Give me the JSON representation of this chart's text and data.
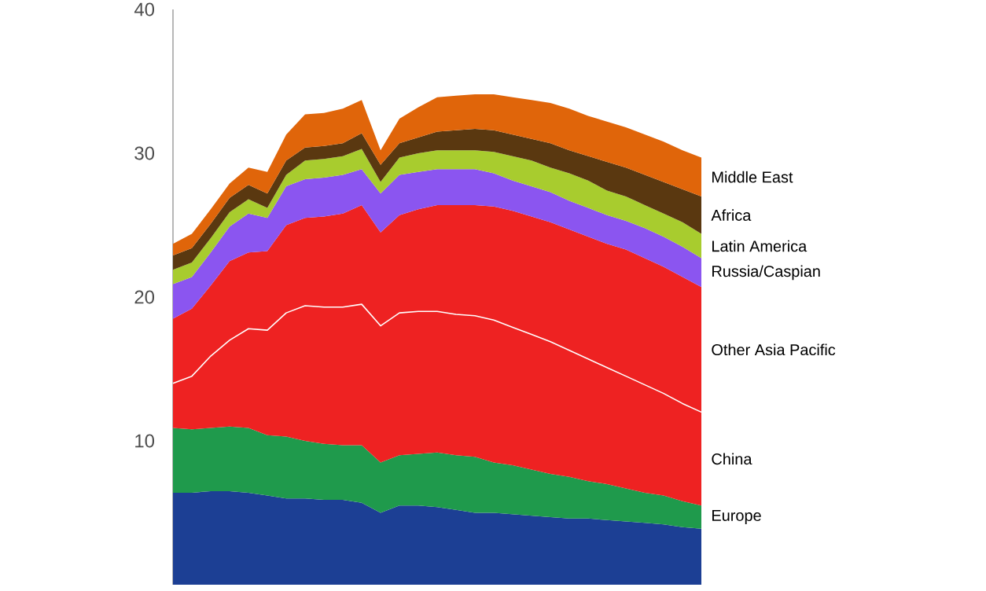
{
  "chart_data": {
    "type": "area",
    "stacked": true,
    "categories": [
      null,
      null,
      null,
      null,
      null,
      null,
      null,
      null,
      null,
      null,
      null,
      null,
      null,
      null,
      null,
      null,
      null,
      null,
      null,
      null,
      null,
      null,
      null,
      null,
      null,
      null,
      null,
      null,
      null
    ],
    "ylim": [
      0,
      40
    ],
    "yticks": [
      10,
      20,
      30,
      40
    ],
    "grid": false,
    "legend": false,
    "series": [
      {
        "color": "#1c3f94",
        "values": [
          6.4,
          6.4,
          6.5,
          6.5,
          6.4,
          6.2,
          6.0,
          6.0,
          5.9,
          5.9,
          5.7,
          5.0,
          5.5,
          5.5,
          5.4,
          5.2,
          5.0,
          5.0,
          4.9,
          4.8,
          4.7,
          4.6,
          4.6,
          4.5,
          4.4,
          4.3,
          4.2,
          4.0,
          3.9
        ]
      },
      {
        "name": "Europe",
        "color": "#1f9a4c",
        "values": [
          4.5,
          4.4,
          4.4,
          4.5,
          4.5,
          4.2,
          4.3,
          4.0,
          3.9,
          3.8,
          4.0,
          3.5,
          3.5,
          3.6,
          3.8,
          3.8,
          3.9,
          3.5,
          3.4,
          3.2,
          3.0,
          2.9,
          2.6,
          2.5,
          2.3,
          2.1,
          2.0,
          1.8,
          1.6
        ]
      },
      {
        "name": "China",
        "color": "#ee2222",
        "values": [
          3.1,
          3.7,
          5.0,
          6.0,
          6.9,
          7.3,
          8.6,
          9.4,
          9.5,
          9.6,
          9.8,
          9.5,
          9.9,
          9.9,
          9.8,
          9.8,
          9.8,
          9.9,
          9.6,
          9.4,
          9.2,
          8.8,
          8.5,
          8.1,
          7.8,
          7.5,
          7.1,
          6.8,
          6.5
        ]
      },
      {
        "name": "Other Asia Pacific",
        "color": "#ee2222",
        "values": [
          4.5,
          4.7,
          4.9,
          5.5,
          5.3,
          5.5,
          6.1,
          6.1,
          6.3,
          6.5,
          6.9,
          6.5,
          6.8,
          7.1,
          7.4,
          7.6,
          7.7,
          7.9,
          8.1,
          8.2,
          8.3,
          8.4,
          8.5,
          8.6,
          8.8,
          8.8,
          8.8,
          8.8,
          8.7
        ]
      },
      {
        "name": "Russia/Caspian",
        "color": "#8b55f0",
        "values": [
          2.4,
          2.2,
          2.3,
          2.4,
          2.7,
          2.3,
          2.7,
          2.7,
          2.7,
          2.7,
          2.5,
          2.7,
          2.8,
          2.6,
          2.5,
          2.5,
          2.5,
          2.3,
          2.1,
          2.1,
          2.1,
          2.0,
          2.0,
          2.0,
          2.0,
          2.1,
          2.1,
          2.1,
          2.0
        ]
      },
      {
        "name": "Latin America",
        "color": "#a8cc2e",
        "values": [
          1.0,
          1.0,
          1.0,
          1.0,
          1.0,
          0.7,
          0.8,
          1.3,
          1.3,
          1.3,
          1.4,
          0.8,
          1.2,
          1.3,
          1.3,
          1.3,
          1.3,
          1.5,
          1.7,
          1.8,
          1.7,
          1.9,
          1.9,
          1.7,
          1.7,
          1.6,
          1.6,
          1.7,
          1.7
        ]
      },
      {
        "name": "Africa",
        "color": "#5a3810",
        "values": [
          1.0,
          1.0,
          1.0,
          1.0,
          1.0,
          1.0,
          1.0,
          0.9,
          0.9,
          0.9,
          1.1,
          1.2,
          1.0,
          1.1,
          1.3,
          1.4,
          1.5,
          1.5,
          1.5,
          1.5,
          1.7,
          1.6,
          1.7,
          2.0,
          2.0,
          2.1,
          2.2,
          2.3,
          2.6
        ]
      },
      {
        "name": "Middle East",
        "color": "#e0650a",
        "values": [
          0.8,
          1.0,
          1.0,
          1.0,
          1.2,
          1.5,
          1.8,
          2.3,
          2.3,
          2.4,
          2.3,
          1.0,
          1.7,
          2.1,
          2.4,
          2.4,
          2.4,
          2.5,
          2.6,
          2.7,
          2.8,
          2.9,
          2.8,
          2.8,
          2.8,
          2.8,
          2.8,
          2.7,
          2.7
        ]
      }
    ]
  }
}
